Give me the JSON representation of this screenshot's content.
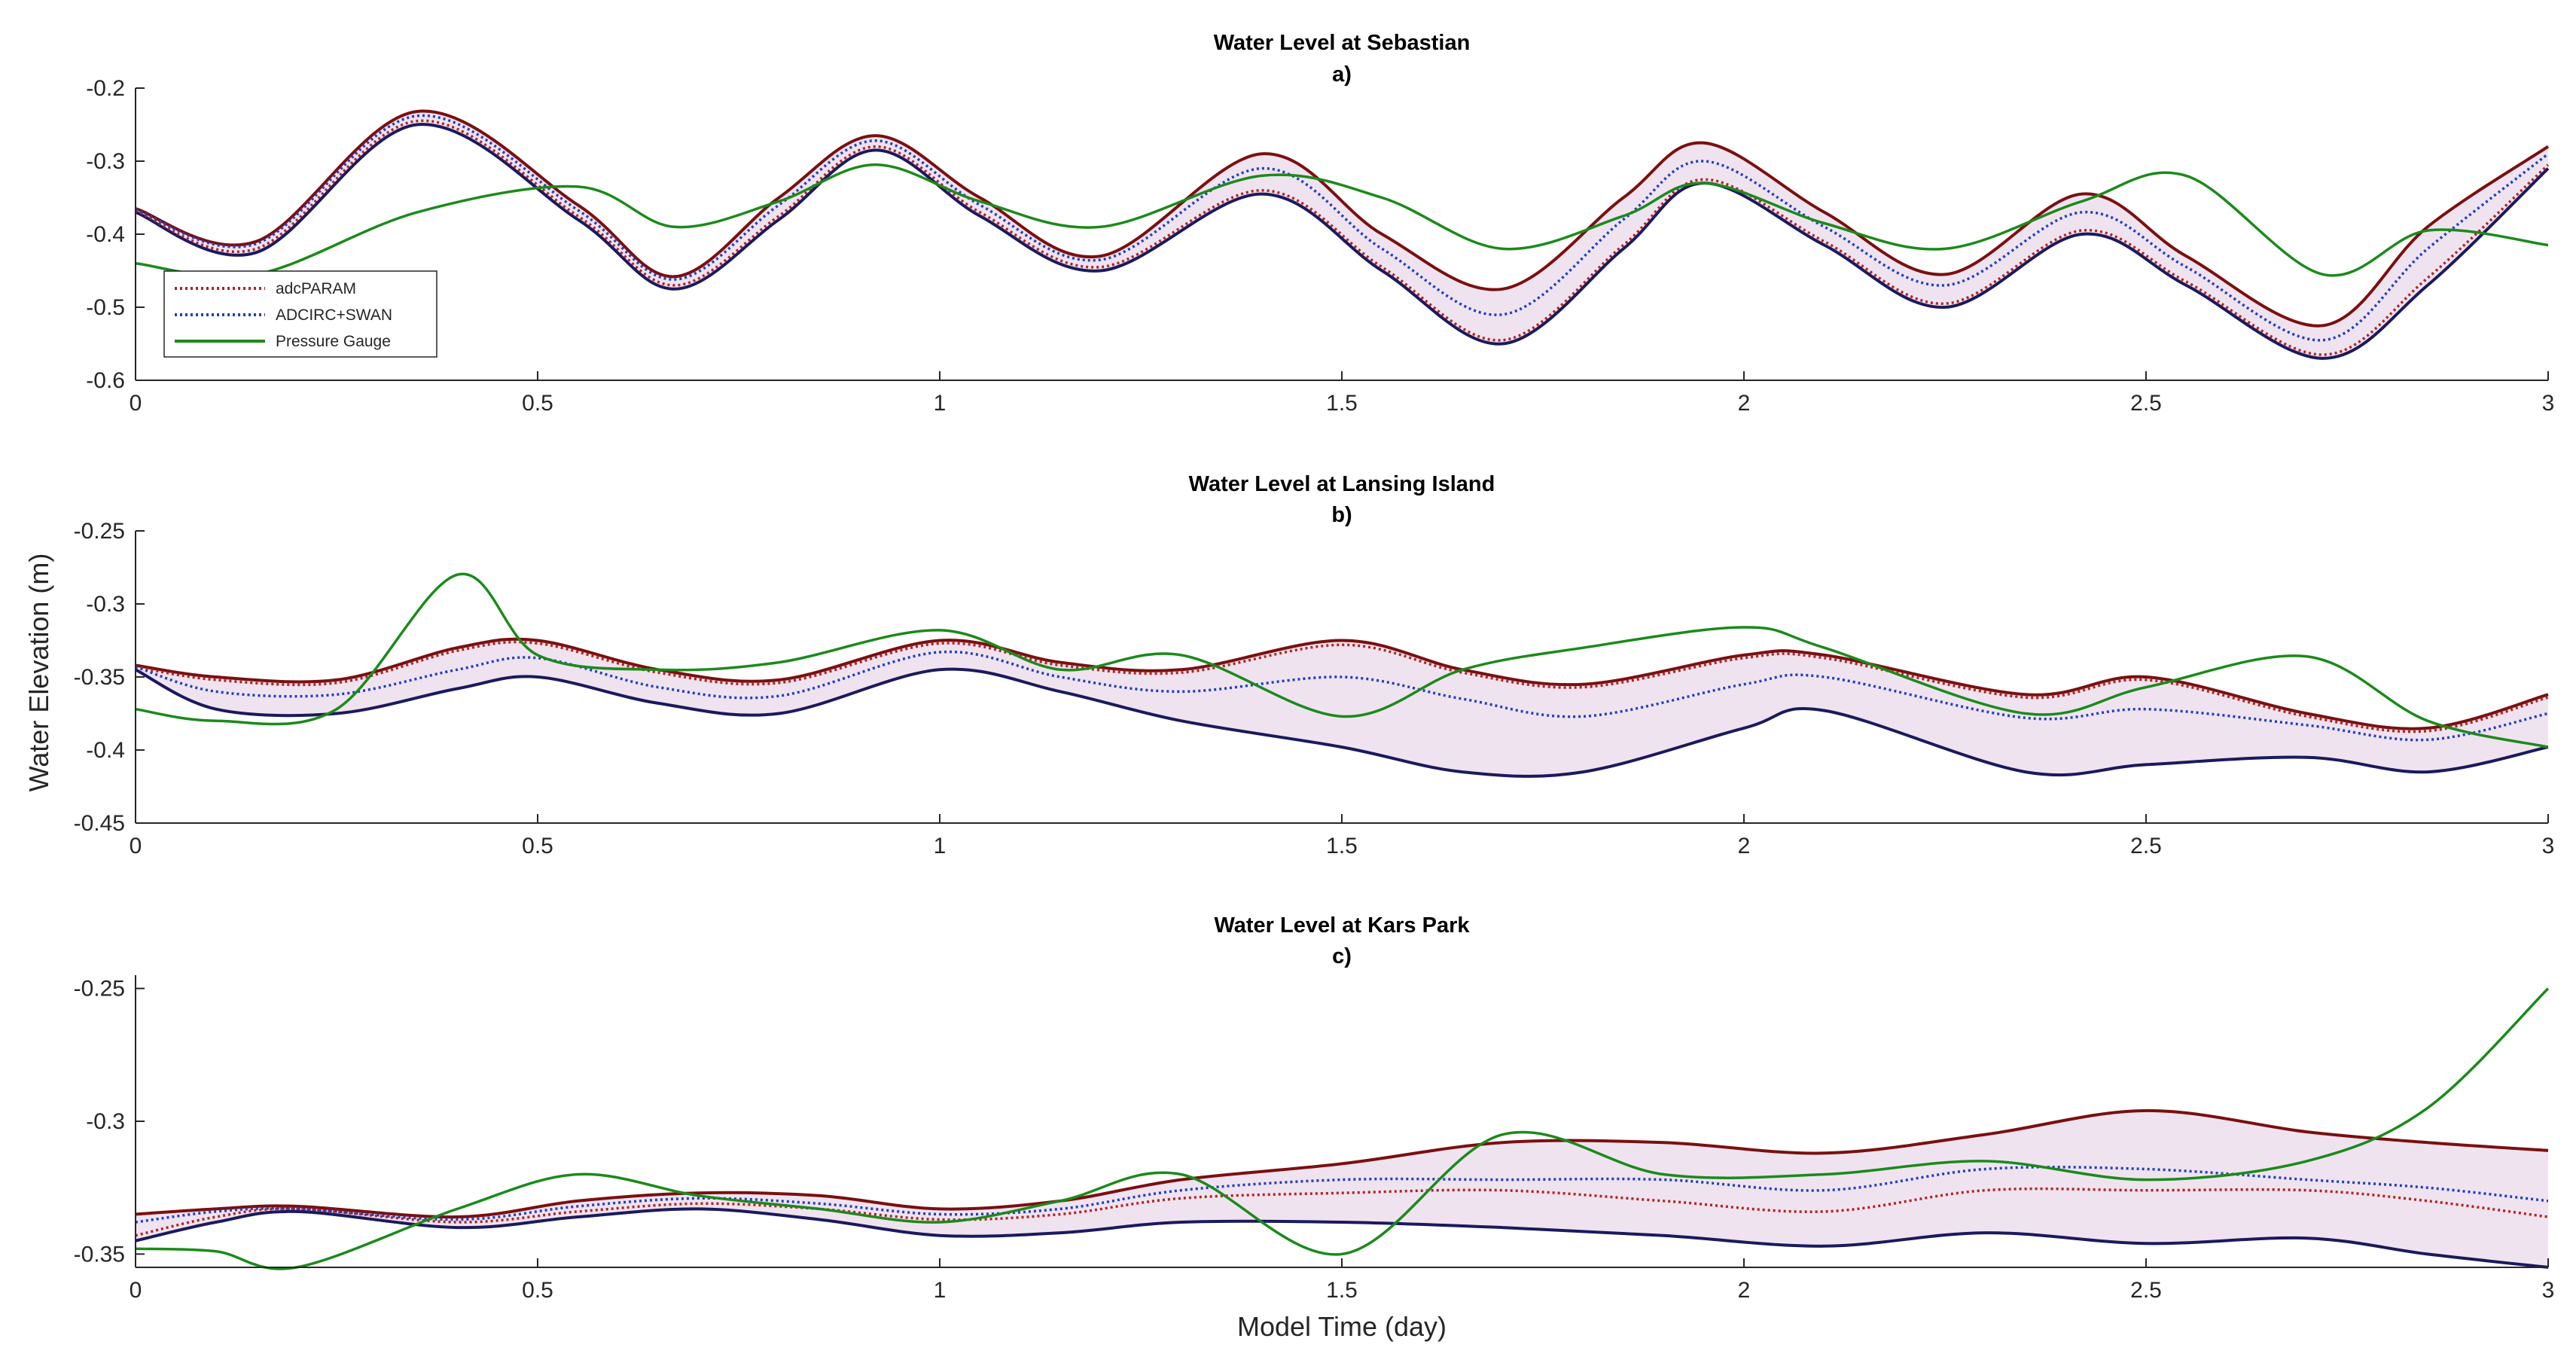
{
  "figure": {
    "ylabel": "Water Elevation (m)",
    "xlabel": "Model Time (day)"
  },
  "legend": {
    "location": "lower-left of panel a",
    "entries": [
      {
        "label": "adcPARAM",
        "color": "#b22222",
        "style": "dotted"
      },
      {
        "label": "ADCIRC+SWAN",
        "color": "#1f3fbf",
        "style": "dotted"
      },
      {
        "label": "Pressure Gauge",
        "color": "#1b8a1b",
        "style": "solid"
      }
    ]
  },
  "colors": {
    "band_fill": "#f0e3f0",
    "upper_bound": "#7a1010",
    "lower_bound": "#1a1a5e",
    "adcparam": "#b22222",
    "adcirc_swan": "#1f3fbf",
    "pressure_gauge": "#1b8a1b",
    "axis": "#262626"
  },
  "chart_data": [
    {
      "type": "line",
      "title": "Water Level at Sebastian",
      "subtitle": "a)",
      "xlim": [
        0,
        3
      ],
      "ylim": [
        -0.6,
        -0.2
      ],
      "xticks": [
        0,
        0.5,
        1,
        1.5,
        2,
        2.5,
        3
      ],
      "xtick_labels": [
        "0",
        "0.5",
        "1",
        "1.5",
        "2",
        "2.5",
        "3"
      ],
      "yticks": [
        -0.6,
        -0.5,
        -0.4,
        -0.3,
        -0.2
      ],
      "ytick_labels": [
        "-0.6",
        "-0.5",
        "-0.4",
        "-0.3",
        "-0.2"
      ],
      "x": [
        0.0,
        0.15,
        0.35,
        0.55,
        0.67,
        0.8,
        0.92,
        1.05,
        1.2,
        1.4,
        1.55,
        1.7,
        1.85,
        1.95,
        2.1,
        2.25,
        2.42,
        2.55,
        2.72,
        2.85,
        3.0
      ],
      "series": [
        {
          "name": "band_upper",
          "values": [
            -0.365,
            -0.41,
            -0.232,
            -0.36,
            -0.458,
            -0.35,
            -0.265,
            -0.35,
            -0.43,
            -0.29,
            -0.4,
            -0.475,
            -0.35,
            -0.275,
            -0.37,
            -0.455,
            -0.345,
            -0.43,
            -0.525,
            -0.39,
            -0.28
          ]
        },
        {
          "name": "band_lower",
          "values": [
            -0.37,
            -0.425,
            -0.25,
            -0.38,
            -0.475,
            -0.38,
            -0.285,
            -0.375,
            -0.45,
            -0.345,
            -0.45,
            -0.55,
            -0.42,
            -0.33,
            -0.415,
            -0.5,
            -0.4,
            -0.47,
            -0.57,
            -0.47,
            -0.31
          ]
        },
        {
          "name": "adcPARAM",
          "values": [
            -0.368,
            -0.42,
            -0.245,
            -0.375,
            -0.47,
            -0.375,
            -0.28,
            -0.37,
            -0.445,
            -0.34,
            -0.445,
            -0.545,
            -0.415,
            -0.325,
            -0.41,
            -0.495,
            -0.395,
            -0.465,
            -0.565,
            -0.46,
            -0.305
          ]
        },
        {
          "name": "ADCIRC+SWAN",
          "values": [
            -0.366,
            -0.413,
            -0.238,
            -0.367,
            -0.462,
            -0.36,
            -0.272,
            -0.36,
            -0.435,
            -0.31,
            -0.42,
            -0.51,
            -0.38,
            -0.3,
            -0.39,
            -0.47,
            -0.37,
            -0.445,
            -0.545,
            -0.42,
            -0.29
          ]
        },
        {
          "name": "Pressure Gauge",
          "values": [
            -0.44,
            -0.455,
            -0.37,
            -0.335,
            -0.39,
            -0.355,
            -0.305,
            -0.355,
            -0.39,
            -0.32,
            -0.35,
            -0.42,
            -0.375,
            -0.33,
            -0.385,
            -0.42,
            -0.355,
            -0.32,
            -0.455,
            -0.395,
            -0.415
          ]
        }
      ]
    },
    {
      "type": "line",
      "title": "Water Level at Lansing Island",
      "subtitle": "b)",
      "xlim": [
        0,
        3
      ],
      "ylim": [
        -0.45,
        -0.25
      ],
      "xticks": [
        0,
        0.5,
        1,
        1.5,
        2,
        2.5,
        3
      ],
      "xtick_labels": [
        "0",
        "0.5",
        "1",
        "1.5",
        "2",
        "2.5",
        "3"
      ],
      "yticks": [
        -0.45,
        -0.4,
        -0.35,
        -0.3,
        -0.25
      ],
      "ytick_labels": [
        "-0.45",
        "-0.4",
        "-0.35",
        "-0.3",
        "-0.25"
      ],
      "x": [
        0.0,
        0.1,
        0.25,
        0.4,
        0.5,
        0.65,
        0.8,
        1.0,
        1.15,
        1.3,
        1.5,
        1.65,
        1.8,
        2.0,
        2.1,
        2.35,
        2.5,
        2.7,
        2.85,
        3.0
      ],
      "series": [
        {
          "name": "band_upper",
          "values": [
            -0.342,
            -0.35,
            -0.352,
            -0.33,
            -0.325,
            -0.345,
            -0.352,
            -0.325,
            -0.34,
            -0.345,
            -0.325,
            -0.345,
            -0.355,
            -0.335,
            -0.335,
            -0.362,
            -0.35,
            -0.375,
            -0.385,
            -0.362
          ]
        },
        {
          "name": "band_lower",
          "values": [
            -0.345,
            -0.372,
            -0.375,
            -0.358,
            -0.35,
            -0.368,
            -0.375,
            -0.345,
            -0.36,
            -0.38,
            -0.398,
            -0.415,
            -0.415,
            -0.385,
            -0.373,
            -0.415,
            -0.41,
            -0.405,
            -0.415,
            -0.398
          ]
        },
        {
          "name": "adcPARAM",
          "values": [
            -0.343,
            -0.352,
            -0.354,
            -0.332,
            -0.327,
            -0.347,
            -0.354,
            -0.327,
            -0.342,
            -0.347,
            -0.328,
            -0.347,
            -0.357,
            -0.337,
            -0.337,
            -0.364,
            -0.352,
            -0.377,
            -0.387,
            -0.364
          ]
        },
        {
          "name": "ADCIRC+SWAN",
          "values": [
            -0.343,
            -0.36,
            -0.362,
            -0.345,
            -0.337,
            -0.357,
            -0.363,
            -0.333,
            -0.35,
            -0.36,
            -0.35,
            -0.365,
            -0.377,
            -0.355,
            -0.35,
            -0.378,
            -0.372,
            -0.383,
            -0.393,
            -0.375
          ]
        },
        {
          "name": "Pressure Gauge",
          "values": [
            -0.372,
            -0.38,
            -0.372,
            -0.28,
            -0.335,
            -0.345,
            -0.34,
            -0.318,
            -0.345,
            -0.335,
            -0.377,
            -0.345,
            -0.33,
            -0.316,
            -0.33,
            -0.375,
            -0.357,
            -0.336,
            -0.38,
            -0.398
          ]
        }
      ]
    },
    {
      "type": "line",
      "title": "Water Level at Kars Park",
      "subtitle": "c)",
      "xlim": [
        0,
        3
      ],
      "ylim": [
        -0.355,
        -0.245
      ],
      "xticks": [
        0,
        0.5,
        1,
        1.5,
        2,
        2.5,
        3
      ],
      "xtick_labels": [
        "0",
        "0.5",
        "1",
        "1.5",
        "2",
        "2.5",
        "3"
      ],
      "yticks": [
        -0.35,
        -0.3,
        -0.25
      ],
      "ytick_labels": [
        "-0.35",
        "-0.3",
        "-0.25"
      ],
      "x": [
        0.0,
        0.1,
        0.2,
        0.4,
        0.55,
        0.7,
        0.85,
        1.0,
        1.15,
        1.3,
        1.5,
        1.7,
        1.9,
        2.1,
        2.3,
        2.5,
        2.7,
        2.85,
        3.0
      ],
      "series": [
        {
          "name": "band_upper",
          "values": [
            -0.335,
            -0.333,
            -0.332,
            -0.336,
            -0.33,
            -0.327,
            -0.328,
            -0.333,
            -0.33,
            -0.322,
            -0.316,
            -0.308,
            -0.308,
            -0.312,
            -0.305,
            -0.296,
            -0.304,
            -0.308,
            -0.311
          ]
        },
        {
          "name": "band_lower",
          "values": [
            -0.345,
            -0.338,
            -0.334,
            -0.34,
            -0.336,
            -0.333,
            -0.337,
            -0.343,
            -0.342,
            -0.338,
            -0.338,
            -0.34,
            -0.343,
            -0.347,
            -0.342,
            -0.346,
            -0.344,
            -0.35,
            -0.355
          ]
        },
        {
          "name": "adcPARAM",
          "values": [
            -0.343,
            -0.336,
            -0.333,
            -0.338,
            -0.334,
            -0.331,
            -0.333,
            -0.337,
            -0.335,
            -0.329,
            -0.327,
            -0.326,
            -0.33,
            -0.334,
            -0.326,
            -0.326,
            -0.326,
            -0.33,
            -0.336
          ]
        },
        {
          "name": "ADCIRC+SWAN",
          "values": [
            -0.338,
            -0.334,
            -0.333,
            -0.337,
            -0.332,
            -0.329,
            -0.331,
            -0.335,
            -0.333,
            -0.326,
            -0.322,
            -0.322,
            -0.322,
            -0.326,
            -0.318,
            -0.318,
            -0.322,
            -0.325,
            -0.33
          ]
        },
        {
          "name": "Pressure Gauge",
          "values": [
            -0.348,
            -0.349,
            -0.355,
            -0.333,
            -0.32,
            -0.328,
            -0.333,
            -0.338,
            -0.33,
            -0.32,
            -0.35,
            -0.305,
            -0.32,
            -0.32,
            -0.315,
            -0.322,
            -0.315,
            -0.295,
            -0.25
          ]
        }
      ]
    }
  ]
}
